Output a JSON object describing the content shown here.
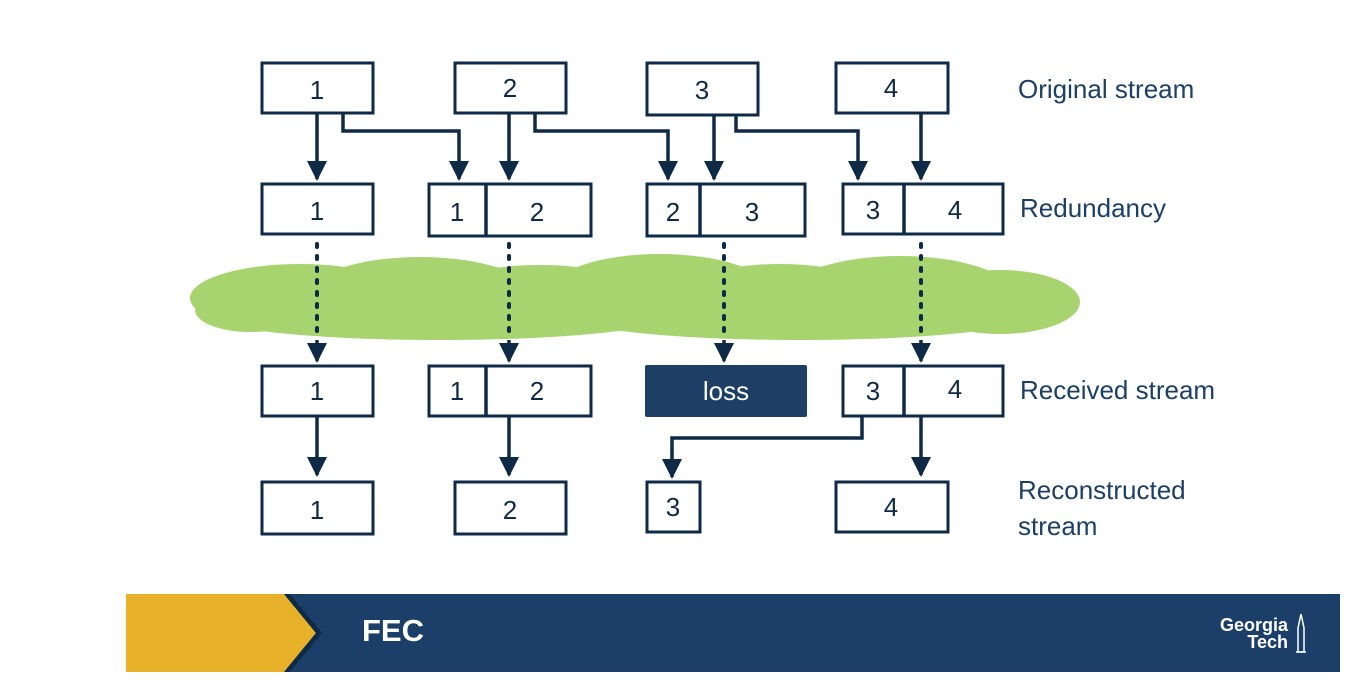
{
  "row_labels": {
    "original": "Original stream",
    "redundancy": "Redundancy",
    "received": "Received stream",
    "reconstructed_line1": "Reconstructed",
    "reconstructed_line2": "stream"
  },
  "original": [
    "1",
    "2",
    "3",
    "4"
  ],
  "redundancy": [
    [
      "1"
    ],
    [
      "1",
      "2"
    ],
    [
      "2",
      "3"
    ],
    [
      "3",
      "4"
    ]
  ],
  "received": [
    [
      "1"
    ],
    [
      "1",
      "2"
    ],
    [
      "loss"
    ],
    [
      "3",
      "4"
    ]
  ],
  "reconstructed": [
    "1",
    "2",
    "3",
    "4"
  ],
  "banner": {
    "title": "FEC",
    "logo_line1": "Georgia",
    "logo_line2": "Tech"
  },
  "colors": {
    "navy": "#0e2a47",
    "banner_blue": "#1c3f6a",
    "gold": "#e8b12a",
    "cloud_green": "#a8d46f",
    "loss_box": "#1d3f66"
  }
}
